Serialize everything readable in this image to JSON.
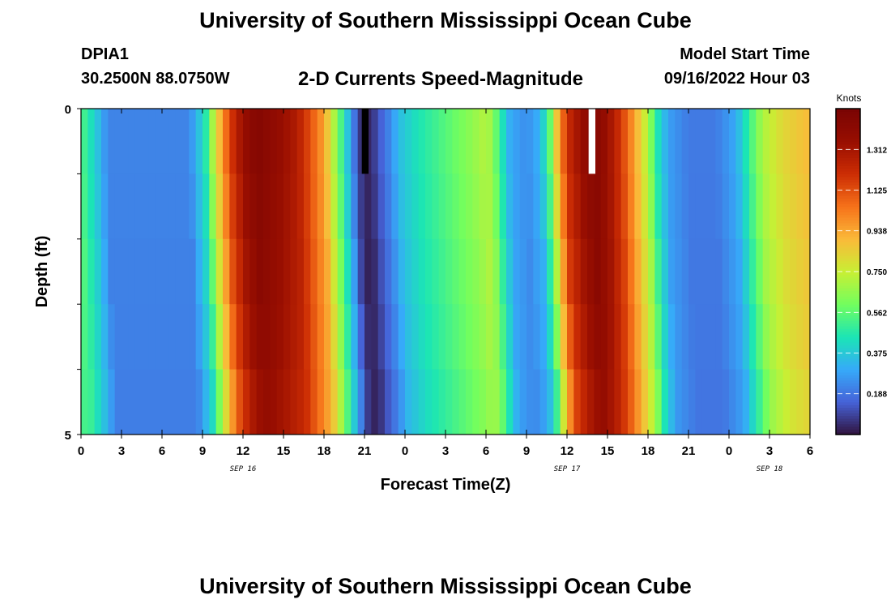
{
  "header": {
    "title": "University of Southern Mississippi Ocean Cube",
    "station": "DPIA1",
    "coords": "30.2500N  88.0750W",
    "subtitle": "2-D Currents Speed-Magnitude",
    "start_label": "Model Start Time",
    "start_value": "09/16/2022 Hour 03",
    "repeat_title": "University of Southern Mississippi Ocean Cube"
  },
  "chart_data": {
    "type": "heatmap",
    "title": "2-D Currents Speed-Magnitude",
    "xlabel": "Forecast Time(Z)",
    "ylabel": "Depth (ft)",
    "x_tick_labels": [
      "0",
      "3",
      "6",
      "9",
      "12",
      "15",
      "18",
      "21",
      "0",
      "3",
      "6",
      "9",
      "12",
      "15",
      "18",
      "21",
      "0",
      "3",
      "6"
    ],
    "date_labels": [
      {
        "label": "SEP 16",
        "at_hour": 12
      },
      {
        "label": "SEP 17",
        "at_hour": 36
      },
      {
        "label": "SEP 18",
        "at_hour": 51
      }
    ],
    "x_range_hours": [
      0,
      54
    ],
    "y_range_ft": [
      0,
      5
    ],
    "y_tick_labels": [
      {
        "value": 0,
        "label": "0"
      },
      {
        "value": 5,
        "label": "5"
      }
    ],
    "depth_layers": 5,
    "colorbar": {
      "title": "Knots",
      "ticks": [
        "0.188",
        "0.375",
        "0.562",
        "0.750",
        "0.938",
        "1.125",
        "1.312"
      ],
      "min": 0,
      "max": 1.5
    },
    "speed_profile_knots": [
      [
        0,
        0.55
      ],
      [
        1,
        0.4
      ],
      [
        2,
        0.22
      ],
      [
        8,
        0.22
      ],
      [
        9.2,
        0.45
      ],
      [
        10,
        0.8
      ],
      [
        11,
        1.15
      ],
      [
        12,
        1.35
      ],
      [
        13,
        1.45
      ],
      [
        14.5,
        1.38
      ],
      [
        16,
        1.28
      ],
      [
        17,
        1.12
      ],
      [
        18,
        0.95
      ],
      [
        19,
        0.62
      ],
      [
        20,
        0.28
      ],
      [
        20.5,
        0.1
      ],
      [
        21,
        0.03
      ],
      [
        21.5,
        0.05
      ],
      [
        22,
        0.12
      ],
      [
        22.8,
        0.22
      ],
      [
        23.6,
        0.35
      ],
      [
        25,
        0.45
      ],
      [
        27,
        0.55
      ],
      [
        29,
        0.65
      ],
      [
        30,
        0.72
      ],
      [
        30.5,
        0.65
      ],
      [
        31,
        0.5
      ],
      [
        31.8,
        0.3
      ],
      [
        33,
        0.24
      ],
      [
        34,
        0.32
      ],
      [
        34.7,
        0.55
      ],
      [
        35.3,
        0.9
      ],
      [
        36,
        1.2
      ],
      [
        37,
        1.35
      ],
      [
        38,
        1.45
      ],
      [
        39,
        1.35
      ],
      [
        40,
        1.18
      ],
      [
        41,
        0.95
      ],
      [
        42,
        0.7
      ],
      [
        42.7,
        0.45
      ],
      [
        43.5,
        0.28
      ],
      [
        45,
        0.2
      ],
      [
        47,
        0.2
      ],
      [
        48.5,
        0.3
      ],
      [
        49.5,
        0.5
      ],
      [
        50.5,
        0.7
      ],
      [
        52,
        0.82
      ],
      [
        54,
        0.9
      ]
    ],
    "depth_speed_factor": [
      1.0,
      0.99,
      0.98,
      0.97,
      0.95
    ],
    "depth_time_shift_hours": [
      0,
      0.1,
      0.25,
      0.4,
      0.6
    ],
    "gap_markers": [
      {
        "hour": 20.8,
        "value": "missing (black)"
      },
      {
        "hour": 37.6,
        "value": "missing (white)"
      }
    ]
  }
}
